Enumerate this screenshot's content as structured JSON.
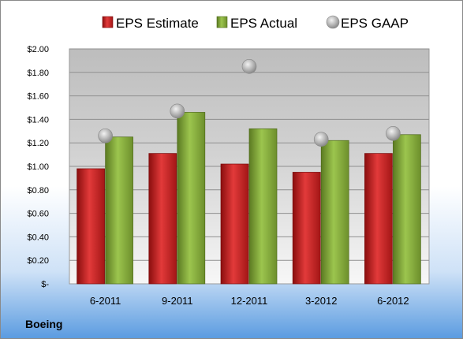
{
  "company": "Boeing",
  "colors": {
    "estimate": "#d42a2a",
    "actual": "#8cb043",
    "gaap": "#b8b8b8",
    "background_top": "#ffffff",
    "background_bottom": "#5a9be0"
  },
  "chart_data": {
    "type": "bar",
    "categories": [
      "6-2011",
      "9-2011",
      "12-2011",
      "3-2012",
      "6-2012"
    ],
    "series": [
      {
        "name": "EPS Estimate",
        "kind": "bar",
        "values": [
          0.98,
          1.11,
          1.02,
          0.95,
          1.11
        ]
      },
      {
        "name": "EPS Actual",
        "kind": "bar",
        "values": [
          1.25,
          1.46,
          1.32,
          1.22,
          1.27
        ]
      },
      {
        "name": "EPS GAAP",
        "kind": "marker",
        "values": [
          1.26,
          1.47,
          1.85,
          1.23,
          1.28
        ]
      }
    ],
    "ylim": [
      0,
      2.0
    ],
    "yticks": [
      0,
      0.2,
      0.4,
      0.6,
      0.8,
      1.0,
      1.2,
      1.4,
      1.6,
      1.8,
      2.0
    ],
    "ytick_labels": [
      "$-",
      "$0.20",
      "$0.40",
      "$0.60",
      "$0.80",
      "$1.00",
      "$1.20",
      "$1.40",
      "$1.60",
      "$1.80",
      "$2.00"
    ],
    "legend_position": "top",
    "grid": true
  }
}
